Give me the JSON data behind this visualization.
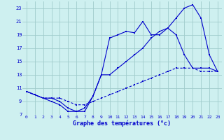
{
  "title": "Graphe des températures (°c)",
  "background_color": "#cef0f0",
  "grid_color": "#a0cccc",
  "line_color": "#0000cc",
  "xlim": [
    -0.5,
    23.5
  ],
  "ylim": [
    7,
    24
  ],
  "xticks": [
    0,
    1,
    2,
    3,
    4,
    5,
    6,
    7,
    8,
    9,
    10,
    11,
    12,
    13,
    14,
    15,
    16,
    17,
    18,
    19,
    20,
    21,
    22,
    23
  ],
  "yticks": [
    7,
    9,
    11,
    13,
    15,
    17,
    19,
    21,
    23
  ],
  "series1_x": [
    0,
    1,
    2,
    3,
    4,
    5,
    6,
    7,
    8,
    9,
    10,
    11,
    12,
    13,
    14,
    15,
    16,
    17,
    18,
    19,
    20,
    21,
    22,
    23
  ],
  "series1_y": [
    10.5,
    10,
    9.5,
    9.0,
    8.5,
    7.5,
    7.5,
    7.5,
    9.8,
    13,
    18.5,
    19,
    19.5,
    19.3,
    21,
    19,
    19,
    20,
    21.5,
    23,
    23.5,
    21.5,
    16,
    13.5
  ],
  "series2_x": [
    0,
    1,
    2,
    3,
    4,
    5,
    6,
    7,
    8,
    9,
    10,
    11,
    12,
    13,
    14,
    15,
    16,
    17,
    18,
    19,
    20,
    21,
    22,
    23
  ],
  "series2_y": [
    10.5,
    10,
    9.5,
    9.5,
    9.0,
    8.0,
    7.5,
    8.0,
    9.8,
    13,
    13,
    14,
    15,
    16,
    17,
    18.5,
    19.5,
    20,
    19,
    16,
    14,
    14,
    14,
    13.5
  ],
  "series3_x": [
    0,
    1,
    2,
    3,
    4,
    5,
    6,
    7,
    8,
    9,
    10,
    11,
    12,
    13,
    14,
    15,
    16,
    17,
    18,
    19,
    20,
    21,
    22,
    23
  ],
  "series3_y": [
    10.5,
    10,
    9.5,
    9.5,
    9.5,
    9.0,
    8.5,
    8.5,
    9.0,
    9.5,
    10,
    10.5,
    11,
    11.5,
    12,
    12.5,
    13,
    13.5,
    14,
    14,
    14,
    13.5,
    13.5,
    13.5
  ]
}
